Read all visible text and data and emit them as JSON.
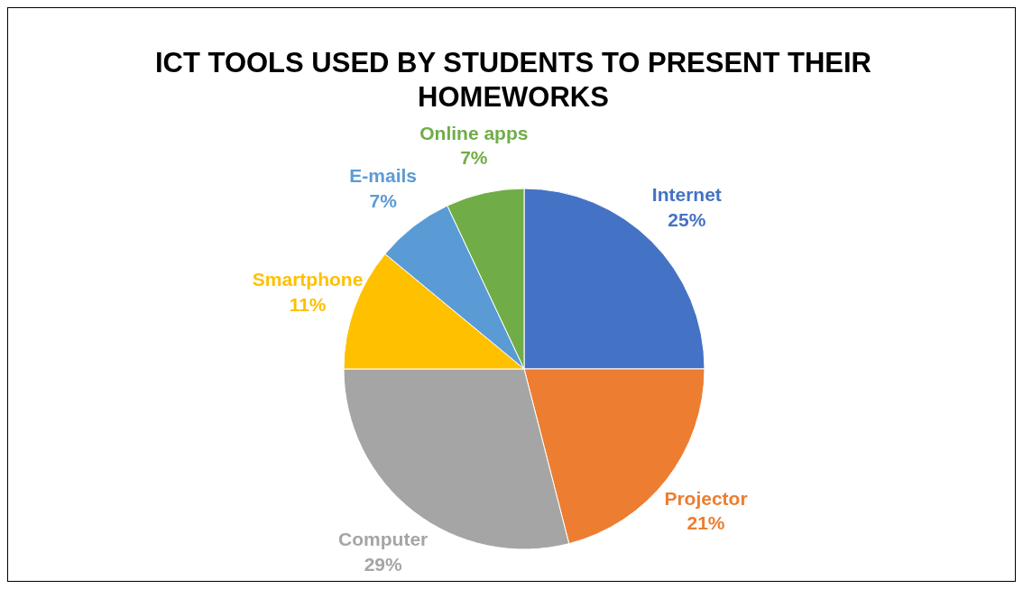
{
  "chart_data": {
    "type": "pie",
    "title": "ICT TOOLS USED BY STUDENTS TO PRESENT THEIR HOMEWORKS",
    "categories": [
      "Internet",
      "Projector",
      "Computer",
      "Smartphone",
      "E-mails",
      "Online apps"
    ],
    "values": [
      25,
      21,
      29,
      11,
      7,
      7
    ],
    "value_labels": [
      "25%",
      "21%",
      "29%",
      "11%",
      "7%",
      "7%"
    ],
    "colors": [
      "#4472c4",
      "#ed7d31",
      "#a5a5a5",
      "#ffc000",
      "#5b9bd5",
      "#70ad47"
    ]
  }
}
